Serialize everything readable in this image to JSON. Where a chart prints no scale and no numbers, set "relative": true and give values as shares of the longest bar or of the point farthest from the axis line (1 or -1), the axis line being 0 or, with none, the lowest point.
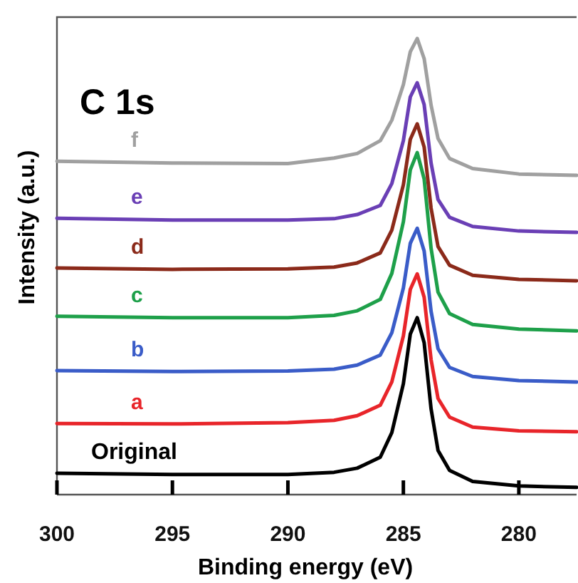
{
  "chart_data": {
    "type": "line",
    "title": "C 1s",
    "xlabel": "Binding energy (eV)",
    "ylabel": "Intensity (a.u.)",
    "relative": true,
    "xlim": [
      300,
      277.5
    ],
    "xticks": [
      300,
      295,
      290,
      285,
      280
    ],
    "grid": false,
    "legend": false,
    "marker": "none",
    "line_style": "solid",
    "x": [
      300,
      295,
      290,
      288,
      287,
      286,
      285.5,
      285,
      284.7,
      284.4,
      284.1,
      283.8,
      283.5,
      283,
      282,
      280,
      277.5
    ],
    "series": [
      {
        "name": "Original",
        "color": "#000000",
        "values": [
          0.047,
          0.044,
          0.044,
          0.049,
          0.058,
          0.082,
          0.136,
          0.243,
          0.352,
          0.388,
          0.333,
          0.188,
          0.097,
          0.053,
          0.029,
          0.019,
          0.016
        ]
      },
      {
        "name": "a",
        "color": "#e8252a",
        "values": [
          0.156,
          0.155,
          0.158,
          0.163,
          0.173,
          0.196,
          0.247,
          0.348,
          0.45,
          0.484,
          0.433,
          0.296,
          0.211,
          0.17,
          0.148,
          0.14,
          0.138
        ]
      },
      {
        "name": "b",
        "color": "#3a5cc8",
        "values": [
          0.272,
          0.27,
          0.271,
          0.275,
          0.284,
          0.306,
          0.355,
          0.453,
          0.551,
          0.584,
          0.534,
          0.402,
          0.32,
          0.279,
          0.259,
          0.25,
          0.247
        ]
      },
      {
        "name": "c",
        "color": "#1ea04a",
        "values": [
          0.391,
          0.388,
          0.388,
          0.393,
          0.403,
          0.428,
          0.485,
          0.598,
          0.712,
          0.75,
          0.692,
          0.54,
          0.444,
          0.397,
          0.373,
          0.363,
          0.359
        ]
      },
      {
        "name": "d",
        "color": "#8b2a1a",
        "values": [
          0.497,
          0.494,
          0.495,
          0.499,
          0.508,
          0.53,
          0.58,
          0.679,
          0.779,
          0.813,
          0.762,
          0.628,
          0.544,
          0.503,
          0.481,
          0.472,
          0.469
        ]
      },
      {
        "name": "e",
        "color": "#6a3fb5",
        "values": [
          0.606,
          0.602,
          0.602,
          0.605,
          0.614,
          0.634,
          0.682,
          0.776,
          0.872,
          0.903,
          0.855,
          0.727,
          0.647,
          0.608,
          0.588,
          0.578,
          0.575
        ]
      },
      {
        "name": "f",
        "color": "#a0a0a0",
        "values": [
          0.731,
          0.727,
          0.726,
          0.738,
          0.748,
          0.776,
          0.821,
          0.899,
          0.971,
          1,
          0.956,
          0.854,
          0.781,
          0.737,
          0.715,
          0.703,
          0.7
        ]
      }
    ]
  }
}
